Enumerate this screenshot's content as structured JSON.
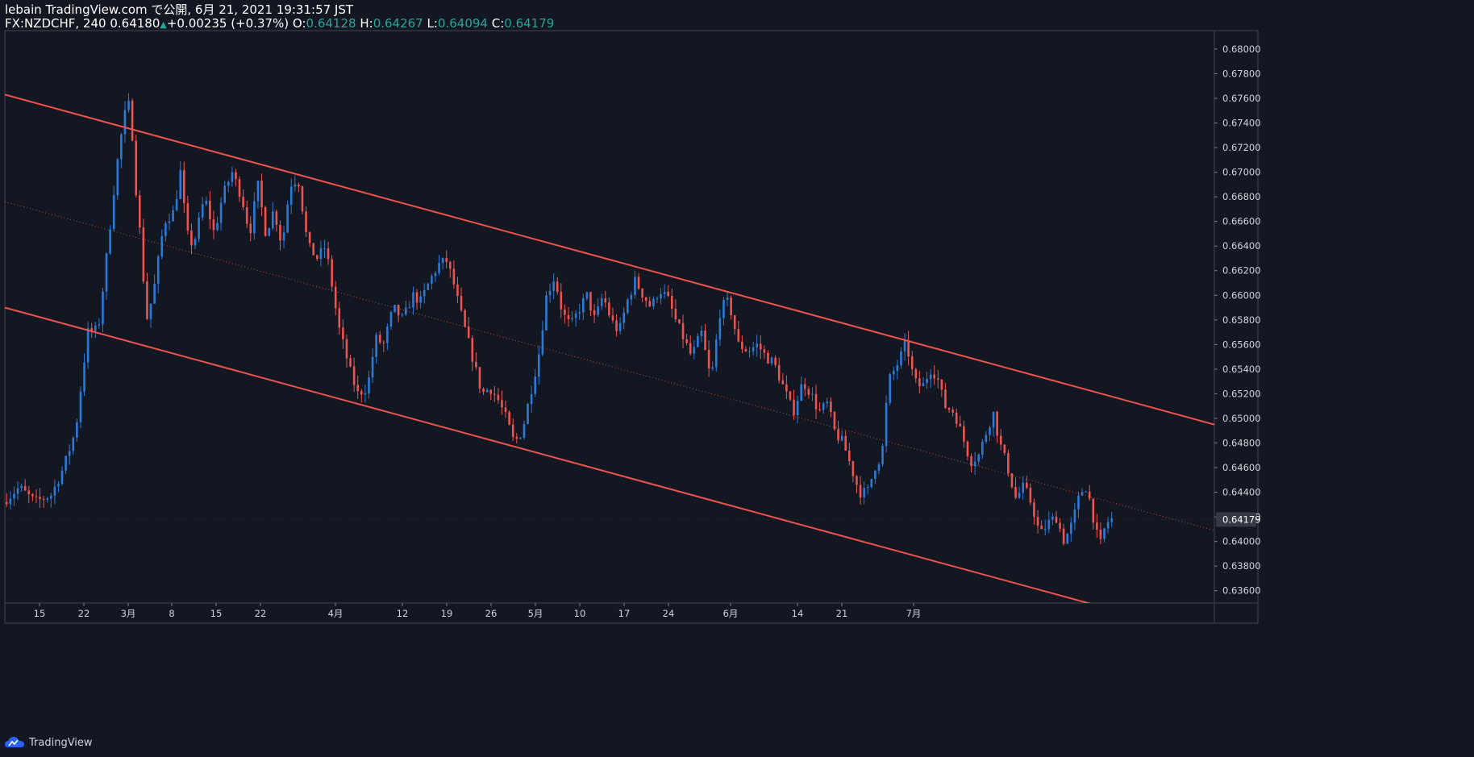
{
  "header": {
    "line1": "lebain TradingView.com で公開, 6月 21, 2021 19:31:57 JST",
    "symbol": "FX:NZDCHF, 240",
    "last": "0.64180",
    "change": "+0.00235 (+0.37%)",
    "o_label": "O:",
    "o_value": "0.64128",
    "h_label": "H:",
    "h_value": "0.64267",
    "l_label": "L:",
    "l_value": "0.64094",
    "c_label": "C:",
    "c_value": "0.64179"
  },
  "footer": {
    "brand": "TradingView"
  },
  "colors": {
    "background": "#131722",
    "up": "#2a7ad8",
    "down": "#ef5350",
    "channel": "#ef5350",
    "grid_text": "#d1d4dc",
    "price_tag": "#363a45"
  },
  "chart_data": {
    "type": "candlestick",
    "symbol": "FX:NZDCHF",
    "interval": "240",
    "ylim": [
      0.635,
      0.6815
    ],
    "y_ticks": [
      "0.68000",
      "0.67800",
      "0.67600",
      "0.67400",
      "0.67200",
      "0.67000",
      "0.66800",
      "0.66600",
      "0.66400",
      "0.66200",
      "0.66000",
      "0.65800",
      "0.65600",
      "0.65400",
      "0.65200",
      "0.65000",
      "0.64800",
      "0.64600",
      "0.64400",
      "0.64200",
      "0.64000",
      "0.63800",
      "0.63600"
    ],
    "x_ticks": [
      {
        "label": "15",
        "t": 0.043
      },
      {
        "label": "22",
        "t": 0.098
      },
      {
        "label": "3月",
        "t": 0.153
      },
      {
        "label": "8",
        "t": 0.207
      },
      {
        "label": "15",
        "t": 0.262
      },
      {
        "label": "22",
        "t": 0.317
      },
      {
        "label": "4月",
        "t": 0.41
      },
      {
        "label": "12",
        "t": 0.493
      },
      {
        "label": "19",
        "t": 0.548
      },
      {
        "label": "26",
        "t": 0.603
      },
      {
        "label": "5月",
        "t": 0.658
      },
      {
        "label": "10",
        "t": 0.713
      },
      {
        "label": "17",
        "t": 0.768
      },
      {
        "label": "24",
        "t": 0.823
      },
      {
        "label": "6月",
        "t": 0.9
      },
      {
        "label": "14",
        "t": 0.983
      },
      {
        "label": "21",
        "t": 1.038
      },
      {
        "label": "7月",
        "t": 1.127
      }
    ],
    "last_price": "0.64179",
    "close_path": [
      [
        0.0,
        0.6432
      ],
      [
        0.02,
        0.6444
      ],
      [
        0.04,
        0.6432
      ],
      [
        0.06,
        0.6438
      ],
      [
        0.075,
        0.646
      ],
      [
        0.09,
        0.649
      ],
      [
        0.105,
        0.657
      ],
      [
        0.118,
        0.6572
      ],
      [
        0.13,
        0.664
      ],
      [
        0.14,
        0.67
      ],
      [
        0.15,
        0.6745
      ],
      [
        0.158,
        0.6758
      ],
      [
        0.163,
        0.67
      ],
      [
        0.17,
        0.665
      ],
      [
        0.178,
        0.658
      ],
      [
        0.186,
        0.66
      ],
      [
        0.2,
        0.666
      ],
      [
        0.212,
        0.6668
      ],
      [
        0.22,
        0.67
      ],
      [
        0.228,
        0.665
      ],
      [
        0.236,
        0.664
      ],
      [
        0.25,
        0.668
      ],
      [
        0.262,
        0.665
      ],
      [
        0.272,
        0.668
      ],
      [
        0.284,
        0.67
      ],
      [
        0.296,
        0.668
      ],
      [
        0.306,
        0.665
      ],
      [
        0.316,
        0.669
      ],
      [
        0.326,
        0.665
      ],
      [
        0.336,
        0.667
      ],
      [
        0.346,
        0.664
      ],
      [
        0.356,
        0.669
      ],
      [
        0.366,
        0.6695
      ],
      [
        0.378,
        0.664
      ],
      [
        0.39,
        0.663
      ],
      [
        0.4,
        0.664
      ],
      [
        0.41,
        0.66
      ],
      [
        0.416,
        0.6575
      ],
      [
        0.424,
        0.6555
      ],
      [
        0.432,
        0.6535
      ],
      [
        0.44,
        0.652
      ],
      [
        0.452,
        0.6525
      ],
      [
        0.462,
        0.6565
      ],
      [
        0.472,
        0.656
      ],
      [
        0.484,
        0.659
      ],
      [
        0.496,
        0.658
      ],
      [
        0.508,
        0.66
      ],
      [
        0.518,
        0.6595
      ],
      [
        0.528,
        0.661
      ],
      [
        0.54,
        0.6625
      ],
      [
        0.55,
        0.6628
      ],
      [
        0.558,
        0.6612
      ],
      [
        0.566,
        0.659
      ],
      [
        0.574,
        0.657
      ],
      [
        0.584,
        0.6545
      ],
      [
        0.594,
        0.652
      ],
      [
        0.604,
        0.6525
      ],
      [
        0.614,
        0.6515
      ],
      [
        0.624,
        0.65
      ],
      [
        0.634,
        0.648
      ],
      [
        0.644,
        0.649
      ],
      [
        0.654,
        0.652
      ],
      [
        0.664,
        0.655
      ],
      [
        0.674,
        0.66
      ],
      [
        0.684,
        0.6615
      ],
      [
        0.694,
        0.6585
      ],
      [
        0.704,
        0.6575
      ],
      [
        0.714,
        0.6588
      ],
      [
        0.724,
        0.66
      ],
      [
        0.734,
        0.658
      ],
      [
        0.744,
        0.66
      ],
      [
        0.754,
        0.658
      ],
      [
        0.764,
        0.657
      ],
      [
        0.774,
        0.6595
      ],
      [
        0.784,
        0.6612
      ],
      [
        0.794,
        0.66
      ],
      [
        0.804,
        0.659
      ],
      [
        0.814,
        0.6605
      ],
      [
        0.824,
        0.6598
      ],
      [
        0.834,
        0.658
      ],
      [
        0.844,
        0.6565
      ],
      [
        0.854,
        0.655
      ],
      [
        0.866,
        0.657
      ],
      [
        0.878,
        0.653
      ],
      [
        0.89,
        0.659
      ],
      [
        0.9,
        0.6595
      ],
      [
        0.912,
        0.656
      ],
      [
        0.924,
        0.6555
      ],
      [
        0.936,
        0.656
      ],
      [
        0.946,
        0.655
      ],
      [
        0.956,
        0.6545
      ],
      [
        0.968,
        0.6525
      ],
      [
        0.98,
        0.6505
      ],
      [
        0.992,
        0.653
      ],
      [
        1.002,
        0.652
      ],
      [
        1.012,
        0.6505
      ],
      [
        1.022,
        0.6512
      ],
      [
        1.032,
        0.6488
      ],
      [
        1.042,
        0.648
      ],
      [
        1.052,
        0.646
      ],
      [
        1.062,
        0.644
      ],
      [
        1.072,
        0.644
      ],
      [
        1.082,
        0.6462
      ],
      [
        1.09,
        0.647
      ],
      [
        1.098,
        0.653
      ],
      [
        1.11,
        0.6545
      ],
      [
        1.12,
        0.6562
      ],
      [
        1.13,
        0.653
      ],
      [
        1.14,
        0.6525
      ],
      [
        1.15,
        0.654
      ],
      [
        1.158,
        0.6535
      ],
      [
        1.168,
        0.651
      ],
      [
        1.18,
        0.6505
      ],
      [
        1.19,
        0.6485
      ],
      [
        1.2,
        0.6465
      ],
      [
        1.21,
        0.647
      ],
      [
        1.22,
        0.649
      ],
      [
        1.228,
        0.6505
      ],
      [
        1.236,
        0.648
      ],
      [
        1.246,
        0.646
      ],
      [
        1.256,
        0.6435
      ],
      [
        1.266,
        0.6445
      ],
      [
        1.276,
        0.643
      ],
      [
        1.286,
        0.6405
      ],
      [
        1.296,
        0.6415
      ],
      [
        1.306,
        0.642
      ],
      [
        1.316,
        0.64
      ],
      [
        1.326,
        0.6415
      ],
      [
        1.336,
        0.644
      ],
      [
        1.344,
        0.6445
      ],
      [
        1.352,
        0.642
      ],
      [
        1.36,
        0.6395
      ],
      [
        1.368,
        0.6415
      ],
      [
        1.375,
        0.6418
      ]
    ],
    "channel_lines": [
      {
        "name": "upper",
        "p1": [
          0.0,
          0.6763
        ],
        "p2": [
          1.5,
          0.6495
        ]
      },
      {
        "name": "middle",
        "p1": [
          0.0,
          0.6676
        ],
        "p2": [
          1.5,
          0.6409
        ],
        "style": "dotted"
      },
      {
        "name": "lower",
        "p1": [
          0.0,
          0.659
        ],
        "p2": [
          1.5,
          0.6322
        ]
      }
    ]
  }
}
